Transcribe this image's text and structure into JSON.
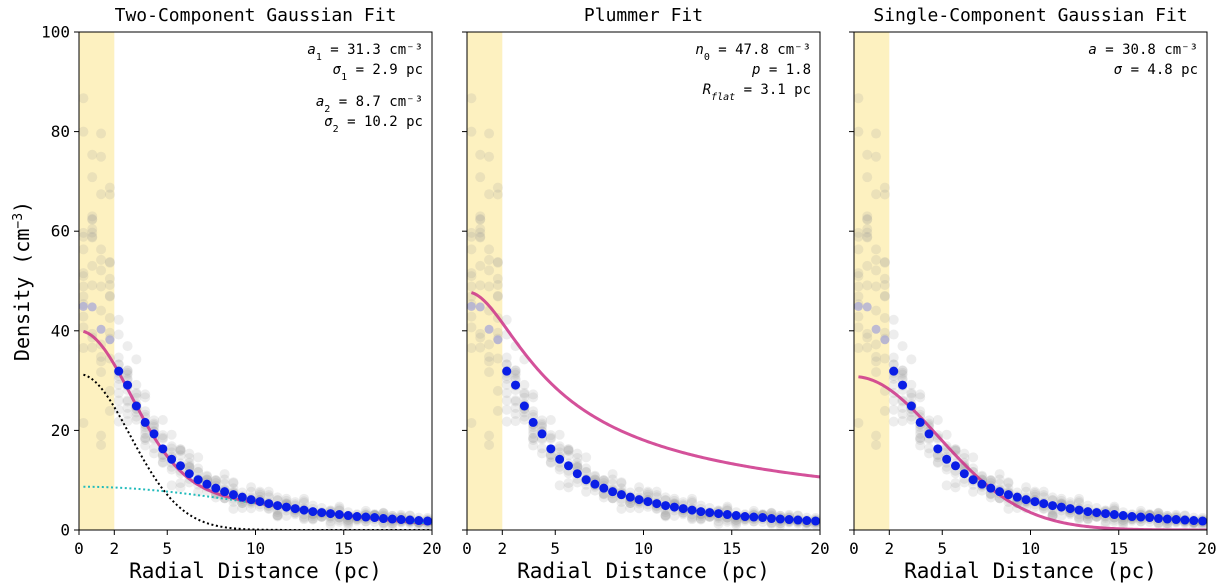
{
  "figure": {
    "ylabel": "Density (cm",
    "ylabel_sup": "−3",
    "ylabel_close": ")"
  },
  "chart_data": [
    {
      "type": "scatter",
      "title": "Two-Component Gaussian Fit",
      "xlabel": "Radial Distance (pc)",
      "ylabel": "Density (cm⁻³)",
      "xlim": [
        0,
        20
      ],
      "ylim": [
        0,
        100
      ],
      "xticks": [
        "0",
        "2",
        "5",
        "10",
        "15",
        "20"
      ],
      "yticks": [
        "0",
        "20",
        "40",
        "60",
        "80",
        "100"
      ],
      "grid": false,
      "shaded_region": [
        0,
        2
      ],
      "binned_mean": {
        "x": [
          0.25,
          0.75,
          1.25,
          1.75,
          2.25,
          2.75,
          3.25,
          3.75,
          4.25,
          4.75,
          5.25,
          5.75,
          6.25,
          6.75,
          7.25,
          7.75,
          8.25,
          8.75,
          9.25,
          9.75,
          10.25,
          10.75,
          11.25,
          11.75,
          12.25,
          12.75,
          13.25,
          13.75,
          14.25,
          14.75,
          15.25,
          15.75,
          16.25,
          16.75,
          17.25,
          17.75,
          18.25,
          18.75,
          19.25,
          19.75
        ],
        "y": [
          44.9,
          44.8,
          40.3,
          38.2,
          31.9,
          29.1,
          24.9,
          21.6,
          19.3,
          16.3,
          14.2,
          12.9,
          11.3,
          10.1,
          9.2,
          8.4,
          7.7,
          7.1,
          6.6,
          6.1,
          5.7,
          5.3,
          4.9,
          4.6,
          4.3,
          4.0,
          3.7,
          3.5,
          3.3,
          3.1,
          2.9,
          2.7,
          2.6,
          2.5,
          2.3,
          2.2,
          2.1,
          2.0,
          1.9,
          1.8
        ]
      },
      "fits": [
        {
          "style": "solid",
          "color": "#cc3388",
          "model": "gauss2",
          "a1": 31.3,
          "s1": 2.9,
          "a2": 8.7,
          "s2": 10.2
        },
        {
          "style": "dotted",
          "color": "#000000",
          "model": "gauss",
          "a": 31.3,
          "s": 2.9
        },
        {
          "style": "dotted",
          "color": "#22bbbb",
          "model": "gauss",
          "a": 8.7,
          "s": 10.2
        }
      ],
      "annotations": [
        {
          "label": "a",
          "sub": "1",
          "text": " = 31.3 cm⁻³"
        },
        {
          "label": "σ",
          "sub": "1",
          "text": " = 2.9 pc"
        },
        {
          "label": "a",
          "sub": "2",
          "text": " = 8.7 cm⁻³"
        },
        {
          "label": "σ",
          "sub": "2",
          "text": " = 10.2 pc"
        }
      ]
    },
    {
      "type": "scatter",
      "title": "Plummer Fit",
      "xlabel": "Radial Distance (pc)",
      "xlim": [
        0,
        20
      ],
      "ylim": [
        0,
        100
      ],
      "xticks": [
        "0",
        "2",
        "5",
        "10",
        "15",
        "20"
      ],
      "grid": false,
      "shaded_region": [
        0,
        2
      ],
      "binned_mean": {
        "x": [
          0.25,
          0.75,
          1.25,
          1.75,
          2.25,
          2.75,
          3.25,
          3.75,
          4.25,
          4.75,
          5.25,
          5.75,
          6.25,
          6.75,
          7.25,
          7.75,
          8.25,
          8.75,
          9.25,
          9.75,
          10.25,
          10.75,
          11.25,
          11.75,
          12.25,
          12.75,
          13.25,
          13.75,
          14.25,
          14.75,
          15.25,
          15.75,
          16.25,
          16.75,
          17.25,
          17.75,
          18.25,
          18.75,
          19.25,
          19.75
        ],
        "y": [
          44.9,
          44.8,
          40.3,
          38.2,
          31.9,
          29.1,
          24.9,
          21.6,
          19.3,
          16.3,
          14.2,
          12.9,
          11.3,
          10.1,
          9.2,
          8.4,
          7.7,
          7.1,
          6.6,
          6.1,
          5.7,
          5.3,
          4.9,
          4.6,
          4.3,
          4.0,
          3.7,
          3.5,
          3.3,
          3.1,
          2.9,
          2.7,
          2.6,
          2.5,
          2.3,
          2.2,
          2.1,
          2.0,
          1.9,
          1.8
        ]
      },
      "fits": [
        {
          "style": "solid",
          "color": "#cc3388",
          "model": "plummer",
          "n0": 47.8,
          "p": 1.8,
          "rflat": 3.1
        }
      ],
      "annotations": [
        {
          "label": "n",
          "sub": "0",
          "text": " = 47.8 cm⁻³"
        },
        {
          "label": "p",
          "sub": "",
          "text": " = 1.8"
        },
        {
          "label": "R",
          "sub": "flat",
          "text": " = 3.1 pc"
        }
      ]
    },
    {
      "type": "scatter",
      "title": "Single-Component Gaussian Fit",
      "xlabel": "Radial Distance (pc)",
      "xlim": [
        0,
        20
      ],
      "ylim": [
        0,
        100
      ],
      "xticks": [
        "0",
        "2",
        "5",
        "10",
        "15",
        "20"
      ],
      "grid": false,
      "shaded_region": [
        0,
        2
      ],
      "binned_mean": {
        "x": [
          0.25,
          0.75,
          1.25,
          1.75,
          2.25,
          2.75,
          3.25,
          3.75,
          4.25,
          4.75,
          5.25,
          5.75,
          6.25,
          6.75,
          7.25,
          7.75,
          8.25,
          8.75,
          9.25,
          9.75,
          10.25,
          10.75,
          11.25,
          11.75,
          12.25,
          12.75,
          13.25,
          13.75,
          14.25,
          14.75,
          15.25,
          15.75,
          16.25,
          16.75,
          17.25,
          17.75,
          18.25,
          18.75,
          19.25,
          19.75
        ],
        "y": [
          44.9,
          44.8,
          40.3,
          38.2,
          31.9,
          29.1,
          24.9,
          21.6,
          19.3,
          16.3,
          14.2,
          12.9,
          11.3,
          10.1,
          9.2,
          8.4,
          7.7,
          7.1,
          6.6,
          6.1,
          5.7,
          5.3,
          4.9,
          4.6,
          4.3,
          4.0,
          3.7,
          3.5,
          3.3,
          3.1,
          2.9,
          2.7,
          2.6,
          2.5,
          2.3,
          2.2,
          2.1,
          2.0,
          1.9,
          1.8
        ]
      },
      "fits": [
        {
          "style": "solid",
          "color": "#cc3388",
          "model": "gauss",
          "a": 30.8,
          "s": 4.8
        }
      ],
      "annotations": [
        {
          "label": "a",
          "sub": "",
          "text": " = 30.8 cm⁻³"
        },
        {
          "label": "σ",
          "sub": "",
          "text": " = 4.8 pc"
        }
      ]
    }
  ]
}
